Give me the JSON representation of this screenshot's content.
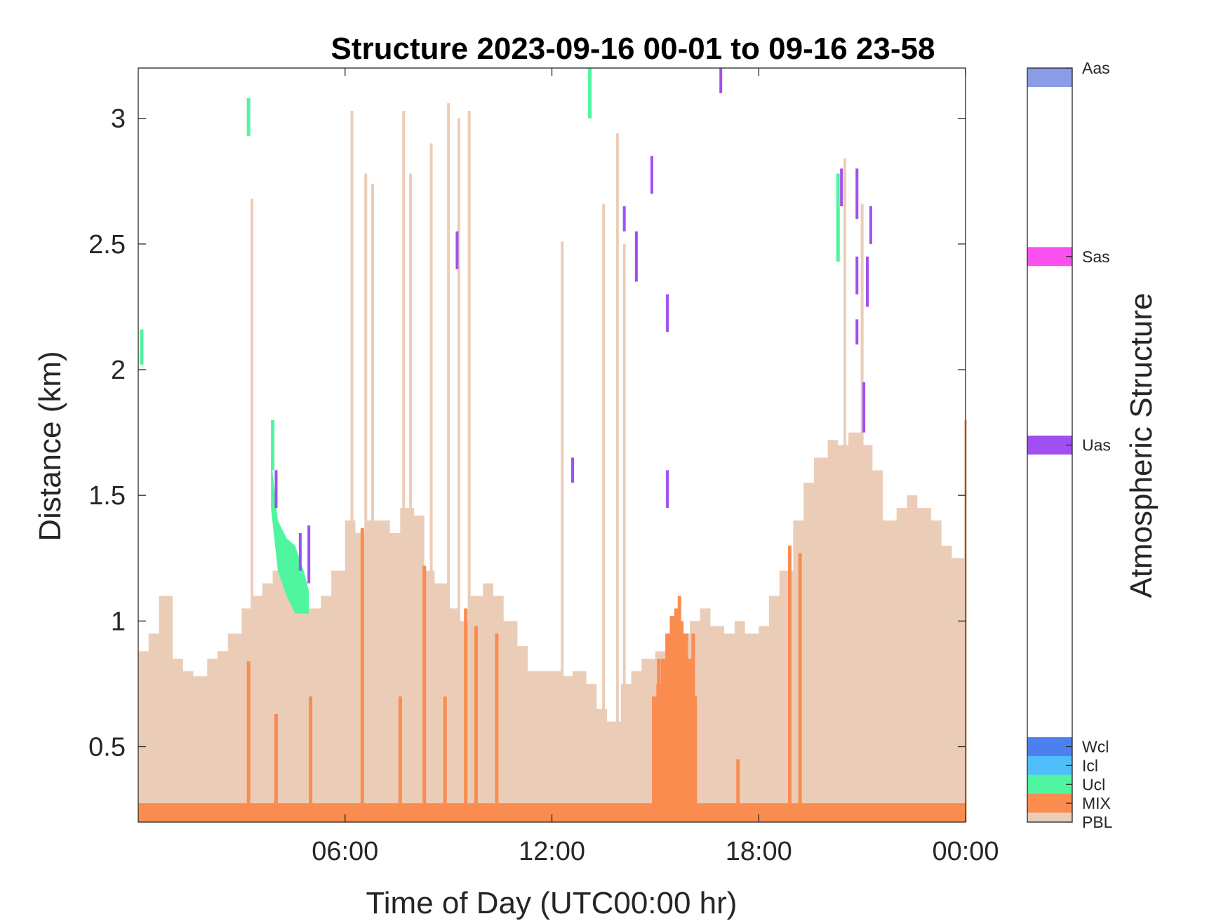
{
  "chart_data": {
    "type": "area",
    "title": "Structure 2023-09-16 00-01 to 09-16 23-58",
    "xlabel": "Time of Day (UTC00:00 hr)",
    "ylabel": "Distance (km)",
    "xlim": [
      0,
      24
    ],
    "ylim": [
      0.2,
      3.2
    ],
    "x_ticks": [
      {
        "value": 6,
        "label": "06:00"
      },
      {
        "value": 12,
        "label": "12:00"
      },
      {
        "value": 18,
        "label": "18:00"
      },
      {
        "value": 24,
        "label": "00:00"
      }
    ],
    "y_ticks": [
      {
        "value": 0.5,
        "label": "0.5"
      },
      {
        "value": 1,
        "label": "1"
      },
      {
        "value": 1.5,
        "label": "1.5"
      },
      {
        "value": 2,
        "label": "2"
      },
      {
        "value": 2.5,
        "label": "2.5"
      },
      {
        "value": 3,
        "label": "3"
      }
    ],
    "pbl_top_km": {
      "x_hours": [
        0.0,
        0.3,
        0.6,
        1.0,
        1.3,
        1.6,
        2.0,
        2.3,
        2.6,
        3.0,
        3.3,
        3.6,
        3.9,
        4.2,
        4.5,
        4.8,
        5.0,
        5.3,
        5.6,
        6.0,
        6.3,
        6.6,
        7.0,
        7.3,
        7.6,
        8.0,
        8.3,
        8.6,
        9.0,
        9.3,
        9.6,
        10.0,
        10.3,
        10.6,
        11.0,
        11.3,
        11.6,
        12.0,
        12.3,
        12.6,
        13.0,
        13.3,
        13.6,
        14.0,
        14.3,
        14.6,
        15.0,
        15.3,
        15.6,
        16.0,
        16.3,
        16.6,
        17.0,
        17.3,
        17.6,
        18.0,
        18.3,
        18.6,
        19.0,
        19.3,
        19.6,
        20.0,
        20.3,
        20.6,
        21.0,
        21.3,
        21.6,
        22.0,
        22.3,
        22.6,
        23.0,
        23.3,
        23.6,
        24.0
      ],
      "values": [
        0.88,
        0.95,
        1.1,
        0.85,
        0.8,
        0.78,
        0.85,
        0.88,
        0.95,
        1.05,
        1.1,
        1.15,
        1.2,
        1.18,
        1.15,
        1.05,
        1.05,
        1.1,
        1.2,
        1.4,
        1.35,
        1.4,
        1.4,
        1.35,
        1.45,
        1.42,
        1.2,
        1.15,
        1.05,
        1.0,
        1.1,
        1.15,
        1.1,
        1.0,
        0.9,
        0.8,
        0.8,
        0.8,
        0.78,
        0.8,
        0.75,
        0.65,
        0.6,
        0.75,
        0.8,
        0.85,
        0.88,
        0.92,
        0.95,
        1.0,
        1.05,
        0.98,
        0.95,
        1.0,
        0.95,
        0.98,
        1.1,
        1.2,
        1.4,
        1.55,
        1.65,
        1.72,
        1.7,
        1.75,
        1.7,
        1.6,
        1.4,
        1.45,
        1.5,
        1.45,
        1.4,
        1.3,
        1.25,
        1.3
      ]
    },
    "pbl_spikes": [
      {
        "x": 3.3,
        "top": 2.68
      },
      {
        "x": 6.2,
        "top": 3.03
      },
      {
        "x": 6.6,
        "top": 2.78
      },
      {
        "x": 6.8,
        "top": 2.74
      },
      {
        "x": 7.7,
        "top": 3.03
      },
      {
        "x": 7.9,
        "top": 2.78
      },
      {
        "x": 8.5,
        "top": 2.9
      },
      {
        "x": 9.0,
        "top": 3.06
      },
      {
        "x": 9.3,
        "top": 3.0
      },
      {
        "x": 9.6,
        "top": 3.03
      },
      {
        "x": 12.3,
        "top": 2.51
      },
      {
        "x": 13.5,
        "top": 2.66
      },
      {
        "x": 13.9,
        "top": 2.94
      },
      {
        "x": 14.1,
        "top": 2.5
      },
      {
        "x": 20.5,
        "top": 2.84
      },
      {
        "x": 21.0,
        "top": 2.66
      },
      {
        "x": 24.0,
        "top": 1.8
      }
    ],
    "mix_base_km": 0.275,
    "mix_spikes": [
      {
        "x": 3.2,
        "top": 0.84
      },
      {
        "x": 4.0,
        "top": 0.63
      },
      {
        "x": 5.0,
        "top": 0.7
      },
      {
        "x": 6.5,
        "top": 1.37
      },
      {
        "x": 7.6,
        "top": 0.7
      },
      {
        "x": 8.3,
        "top": 1.22
      },
      {
        "x": 8.9,
        "top": 0.7
      },
      {
        "x": 9.5,
        "top": 1.05
      },
      {
        "x": 9.8,
        "top": 0.98
      },
      {
        "x": 10.4,
        "top": 0.95
      },
      {
        "x": 15.1,
        "top": 0.85
      },
      {
        "x": 15.7,
        "top": 1.1
      },
      {
        "x": 16.1,
        "top": 0.95
      },
      {
        "x": 17.4,
        "top": 0.45
      },
      {
        "x": 18.9,
        "top": 1.3
      },
      {
        "x": 19.2,
        "top": 1.27
      }
    ],
    "mix_block": {
      "x_start": 14.9,
      "x_end": 16.2,
      "values": [
        0.7,
        0.75,
        0.85,
        0.95,
        1.02,
        1.05,
        1.0,
        0.95,
        0.85,
        0.7
      ]
    },
    "ucl_segments": [
      {
        "x": 0.1,
        "y0": 2.02,
        "y1": 2.16
      },
      {
        "x": 3.2,
        "y0": 2.93,
        "y1": 3.08
      },
      {
        "x": 13.1,
        "y0": 3.0,
        "y1": 3.2
      },
      {
        "x": 20.3,
        "y0": 2.43,
        "y1": 2.78
      },
      {
        "x": 3.9,
        "y0": 1.6,
        "y1": 1.8
      }
    ],
    "ucl_region": {
      "x_hours": [
        3.85,
        4.05,
        4.3,
        4.55,
        4.8,
        4.95
      ],
      "top": [
        1.65,
        1.4,
        1.33,
        1.3,
        1.2,
        1.12
      ],
      "bottom": [
        1.45,
        1.2,
        1.1,
        1.03,
        1.03,
        1.03
      ]
    },
    "uas_segments": [
      {
        "x": 4.0,
        "y0": 1.45,
        "y1": 1.6
      },
      {
        "x": 4.7,
        "y0": 1.2,
        "y1": 1.35
      },
      {
        "x": 4.95,
        "y0": 1.15,
        "y1": 1.38
      },
      {
        "x": 9.25,
        "y0": 2.4,
        "y1": 2.55
      },
      {
        "x": 12.6,
        "y0": 1.55,
        "y1": 1.65
      },
      {
        "x": 14.1,
        "y0": 2.55,
        "y1": 2.65
      },
      {
        "x": 14.45,
        "y0": 2.35,
        "y1": 2.55
      },
      {
        "x": 14.9,
        "y0": 2.7,
        "y1": 2.85
      },
      {
        "x": 15.35,
        "y0": 2.15,
        "y1": 2.3
      },
      {
        "x": 15.35,
        "y0": 1.45,
        "y1": 1.6
      },
      {
        "x": 16.9,
        "y0": 3.1,
        "y1": 3.2
      },
      {
        "x": 20.4,
        "y0": 2.65,
        "y1": 2.8
      },
      {
        "x": 20.85,
        "y0": 2.6,
        "y1": 2.8
      },
      {
        "x": 20.85,
        "y0": 2.3,
        "y1": 2.45
      },
      {
        "x": 20.85,
        "y0": 2.1,
        "y1": 2.2
      },
      {
        "x": 21.05,
        "y0": 1.75,
        "y1": 1.95
      },
      {
        "x": 21.15,
        "y0": 2.25,
        "y1": 2.45
      },
      {
        "x": 21.25,
        "y0": 2.5,
        "y1": 2.65
      }
    ],
    "colorbar": {
      "title": "Atmospheric Structure",
      "categories": [
        {
          "label": "Aas",
          "color": "#8c9be5",
          "level": 1.0
        },
        {
          "label": "Sas",
          "color": "#fa50f0",
          "level": 0.75
        },
        {
          "label": "Uas",
          "color": "#a050f0",
          "level": 0.5
        },
        {
          "label": "Wcl",
          "color": "#4c7ff0",
          "level": 0.1
        },
        {
          "label": "Icl",
          "color": "#50befa",
          "level": 0.075
        },
        {
          "label": "Ucl",
          "color": "#50f5a0",
          "level": 0.05
        },
        {
          "label": "MIX",
          "color": "#fa8c50",
          "level": 0.025
        },
        {
          "label": "PBL",
          "color": "#ebcdb7",
          "level": 0.0
        }
      ]
    }
  }
}
